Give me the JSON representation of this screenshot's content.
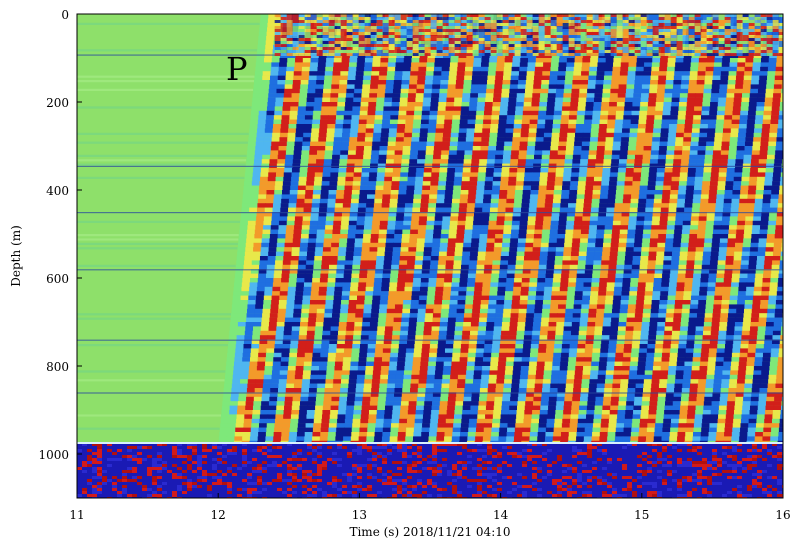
{
  "chart_data": {
    "type": "heatmap",
    "title": "",
    "xlabel": "Time (s) 2018/11/21 04:10",
    "ylabel": "Depth (m)",
    "xlim": [
      11,
      16
    ],
    "ylim": [
      0,
      1100
    ],
    "y_inverted": true,
    "xticks": [
      11,
      12,
      13,
      14,
      15,
      16
    ],
    "yticks": [
      0,
      200,
      400,
      600,
      800,
      1000
    ],
    "grid": false,
    "legend": "none",
    "colormap": [
      "#0a1a8c",
      "#1f6fe0",
      "#4fb6f0",
      "#7ee87a",
      "#e8e84a",
      "#f39a2a",
      "#d21f1a"
    ],
    "background_value_color": "#8ee06a",
    "annotations": [
      {
        "text": "P",
        "time": 12.2,
        "depth": 120
      }
    ],
    "p_arrival": {
      "time_top": 12.3,
      "time_bottom": 12.0
    },
    "fiber_end_depth": 975,
    "noise_zone": {
      "depth_from": 975,
      "depth_to": 1100,
      "colors": [
        "#1a1ab4",
        "#d21a1a",
        "#2a2ad0",
        "#b01010"
      ]
    }
  }
}
